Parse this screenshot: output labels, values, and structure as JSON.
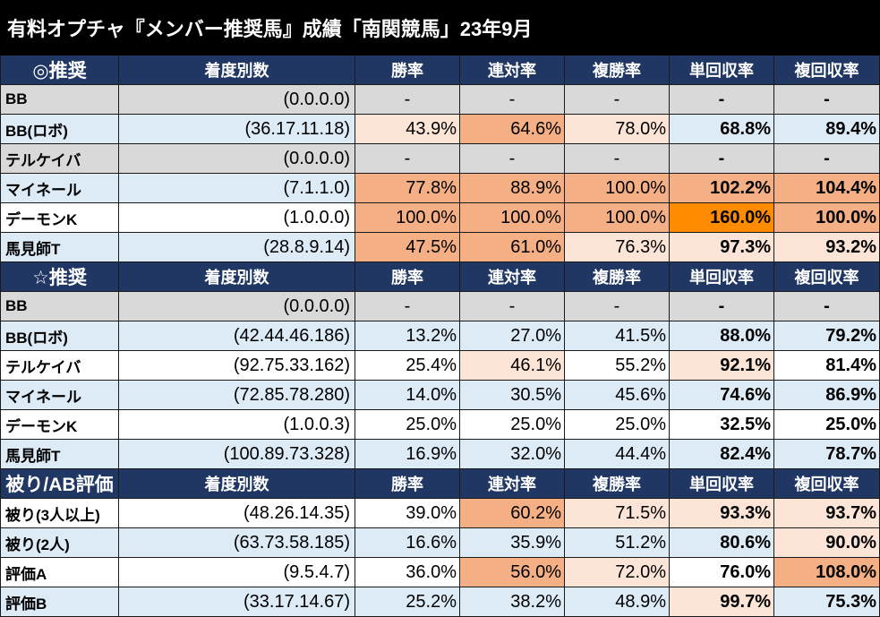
{
  "colors": {
    "title_bg": "#000000",
    "header_bg": "#203764",
    "white": "#ffffff",
    "blue": "#ddebf7",
    "gray": "#d9d9d9",
    "light": "#fce4d6",
    "mid": "#f4b084",
    "strong": "#ff8c00"
  },
  "chart_data": {
    "type": "table",
    "title": "有料オプチャ『メンバー推奨馬』成績「南関競馬」23年9月",
    "columns": [
      "着度別数",
      "勝率",
      "連対率",
      "複勝率",
      "単回収率",
      "複回収率"
    ],
    "sections": [
      {
        "label": "◎推奨",
        "rows": [
          {
            "name": "BB",
            "record": "(0.0.0.0)",
            "values": [
              "-",
              "-",
              "-",
              "-",
              "-"
            ],
            "row_fill": "gray",
            "cell_fill": [
              null,
              null,
              null,
              null,
              null
            ]
          },
          {
            "name": "BB(ロボ)",
            "record": "(36.17.11.18)",
            "values": [
              "43.9%",
              "64.6%",
              "78.0%",
              "68.8%",
              "89.4%"
            ],
            "row_fill": "blue",
            "cell_fill": [
              "light",
              "mid",
              "light",
              null,
              null
            ]
          },
          {
            "name": "テルケイバ",
            "record": "(0.0.0.0)",
            "values": [
              "-",
              "-",
              "-",
              "-",
              "-"
            ],
            "row_fill": "gray",
            "cell_fill": [
              null,
              null,
              null,
              null,
              null
            ]
          },
          {
            "name": "マイネール",
            "record": "(7.1.1.0)",
            "values": [
              "77.8%",
              "88.9%",
              "100.0%",
              "102.2%",
              "104.4%"
            ],
            "row_fill": "blue",
            "cell_fill": [
              "mid",
              "mid",
              "mid",
              "mid",
              "mid"
            ]
          },
          {
            "name": "デーモンK",
            "record": "(1.0.0.0)",
            "values": [
              "100.0%",
              "100.0%",
              "100.0%",
              "160.0%",
              "100.0%"
            ],
            "row_fill": "white",
            "cell_fill": [
              "mid",
              "mid",
              "mid",
              "strong",
              "mid"
            ]
          },
          {
            "name": "馬見師T",
            "record": "(28.8.9.14)",
            "values": [
              "47.5%",
              "61.0%",
              "76.3%",
              "97.3%",
              "93.2%"
            ],
            "row_fill": "blue",
            "cell_fill": [
              "mid",
              "mid",
              "light",
              "light",
              "light"
            ]
          }
        ]
      },
      {
        "label": "☆推奨",
        "rows": [
          {
            "name": "BB",
            "record": "(0.0.0.0)",
            "values": [
              "-",
              "-",
              "-",
              "-",
              "-"
            ],
            "row_fill": "gray",
            "cell_fill": [
              null,
              null,
              null,
              null,
              null
            ]
          },
          {
            "name": "BB(ロボ)",
            "record": "(42.44.46.186)",
            "values": [
              "13.2%",
              "27.0%",
              "41.5%",
              "88.0%",
              "79.2%"
            ],
            "row_fill": "blue",
            "cell_fill": [
              null,
              null,
              null,
              null,
              null
            ]
          },
          {
            "name": "テルケイバ",
            "record": "(92.75.33.162)",
            "values": [
              "25.4%",
              "46.1%",
              "55.2%",
              "92.1%",
              "81.4%"
            ],
            "row_fill": "white",
            "cell_fill": [
              null,
              "light",
              null,
              "light",
              null
            ]
          },
          {
            "name": "マイネール",
            "record": "(72.85.78.280)",
            "values": [
              "14.0%",
              "30.5%",
              "45.6%",
              "74.6%",
              "86.9%"
            ],
            "row_fill": "blue",
            "cell_fill": [
              null,
              null,
              null,
              null,
              null
            ]
          },
          {
            "name": "デーモンK",
            "record": "(1.0.0.3)",
            "values": [
              "25.0%",
              "25.0%",
              "25.0%",
              "32.5%",
              "25.0%"
            ],
            "row_fill": "white",
            "cell_fill": [
              null,
              null,
              null,
              null,
              null
            ]
          },
          {
            "name": "馬見師T",
            "record": "(100.89.73.328)",
            "values": [
              "16.9%",
              "32.0%",
              "44.4%",
              "82.4%",
              "78.7%"
            ],
            "row_fill": "blue",
            "cell_fill": [
              null,
              null,
              null,
              null,
              null
            ]
          }
        ]
      },
      {
        "label": "被り/AB評価",
        "rows": [
          {
            "name": "被り(3人以上)",
            "record": "(48.26.14.35)",
            "values": [
              "39.0%",
              "60.2%",
              "71.5%",
              "93.3%",
              "93.7%"
            ],
            "row_fill": "white",
            "cell_fill": [
              null,
              "mid",
              "light",
              "light",
              "light"
            ]
          },
          {
            "name": "被り(2人)",
            "record": "(63.73.58.185)",
            "values": [
              "16.6%",
              "35.9%",
              "51.2%",
              "80.6%",
              "90.0%"
            ],
            "row_fill": "blue",
            "cell_fill": [
              null,
              null,
              null,
              null,
              "light"
            ]
          },
          {
            "name": "評価A",
            "record": "(9.5.4.7)",
            "values": [
              "36.0%",
              "56.0%",
              "72.0%",
              "76.0%",
              "108.0%"
            ],
            "row_fill": "white",
            "cell_fill": [
              null,
              "mid",
              "light",
              null,
              "mid"
            ]
          },
          {
            "name": "評価B",
            "record": "(33.17.14.67)",
            "values": [
              "25.2%",
              "38.2%",
              "48.9%",
              "99.7%",
              "75.3%"
            ],
            "row_fill": "blue",
            "cell_fill": [
              null,
              null,
              null,
              "light",
              null
            ]
          }
        ]
      }
    ]
  }
}
